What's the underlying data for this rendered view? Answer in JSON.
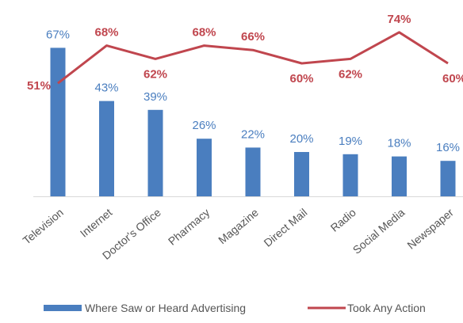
{
  "chart_data": {
    "type": "bar",
    "categories": [
      "Television",
      "Internet",
      "Doctor's Office",
      "Pharmacy",
      "Magazine",
      "Direct Mail",
      "Radio",
      "Social Media",
      "Newspaper"
    ],
    "series": [
      {
        "name": "Where Saw or Heard Advertising",
        "type": "bar",
        "color": "#4a7ebf",
        "values": [
          67,
          43,
          39,
          26,
          22,
          20,
          19,
          18,
          16
        ],
        "labels": [
          "67%",
          "43%",
          "39%",
          "26%",
          "22%",
          "20%",
          "19%",
          "18%",
          "16%"
        ]
      },
      {
        "name": "Took Any Action",
        "type": "line",
        "color": "#c0464e",
        "values": [
          51,
          68,
          62,
          68,
          66,
          60,
          62,
          74,
          60
        ],
        "labels": [
          "51%",
          "68%",
          "62%",
          "68%",
          "66%",
          "60%",
          "62%",
          "74%",
          "60%"
        ]
      }
    ],
    "ylim": [
      0,
      80
    ],
    "grid": false,
    "legend": "bottom",
    "title": "",
    "xlabel": "",
    "ylabel": ""
  }
}
